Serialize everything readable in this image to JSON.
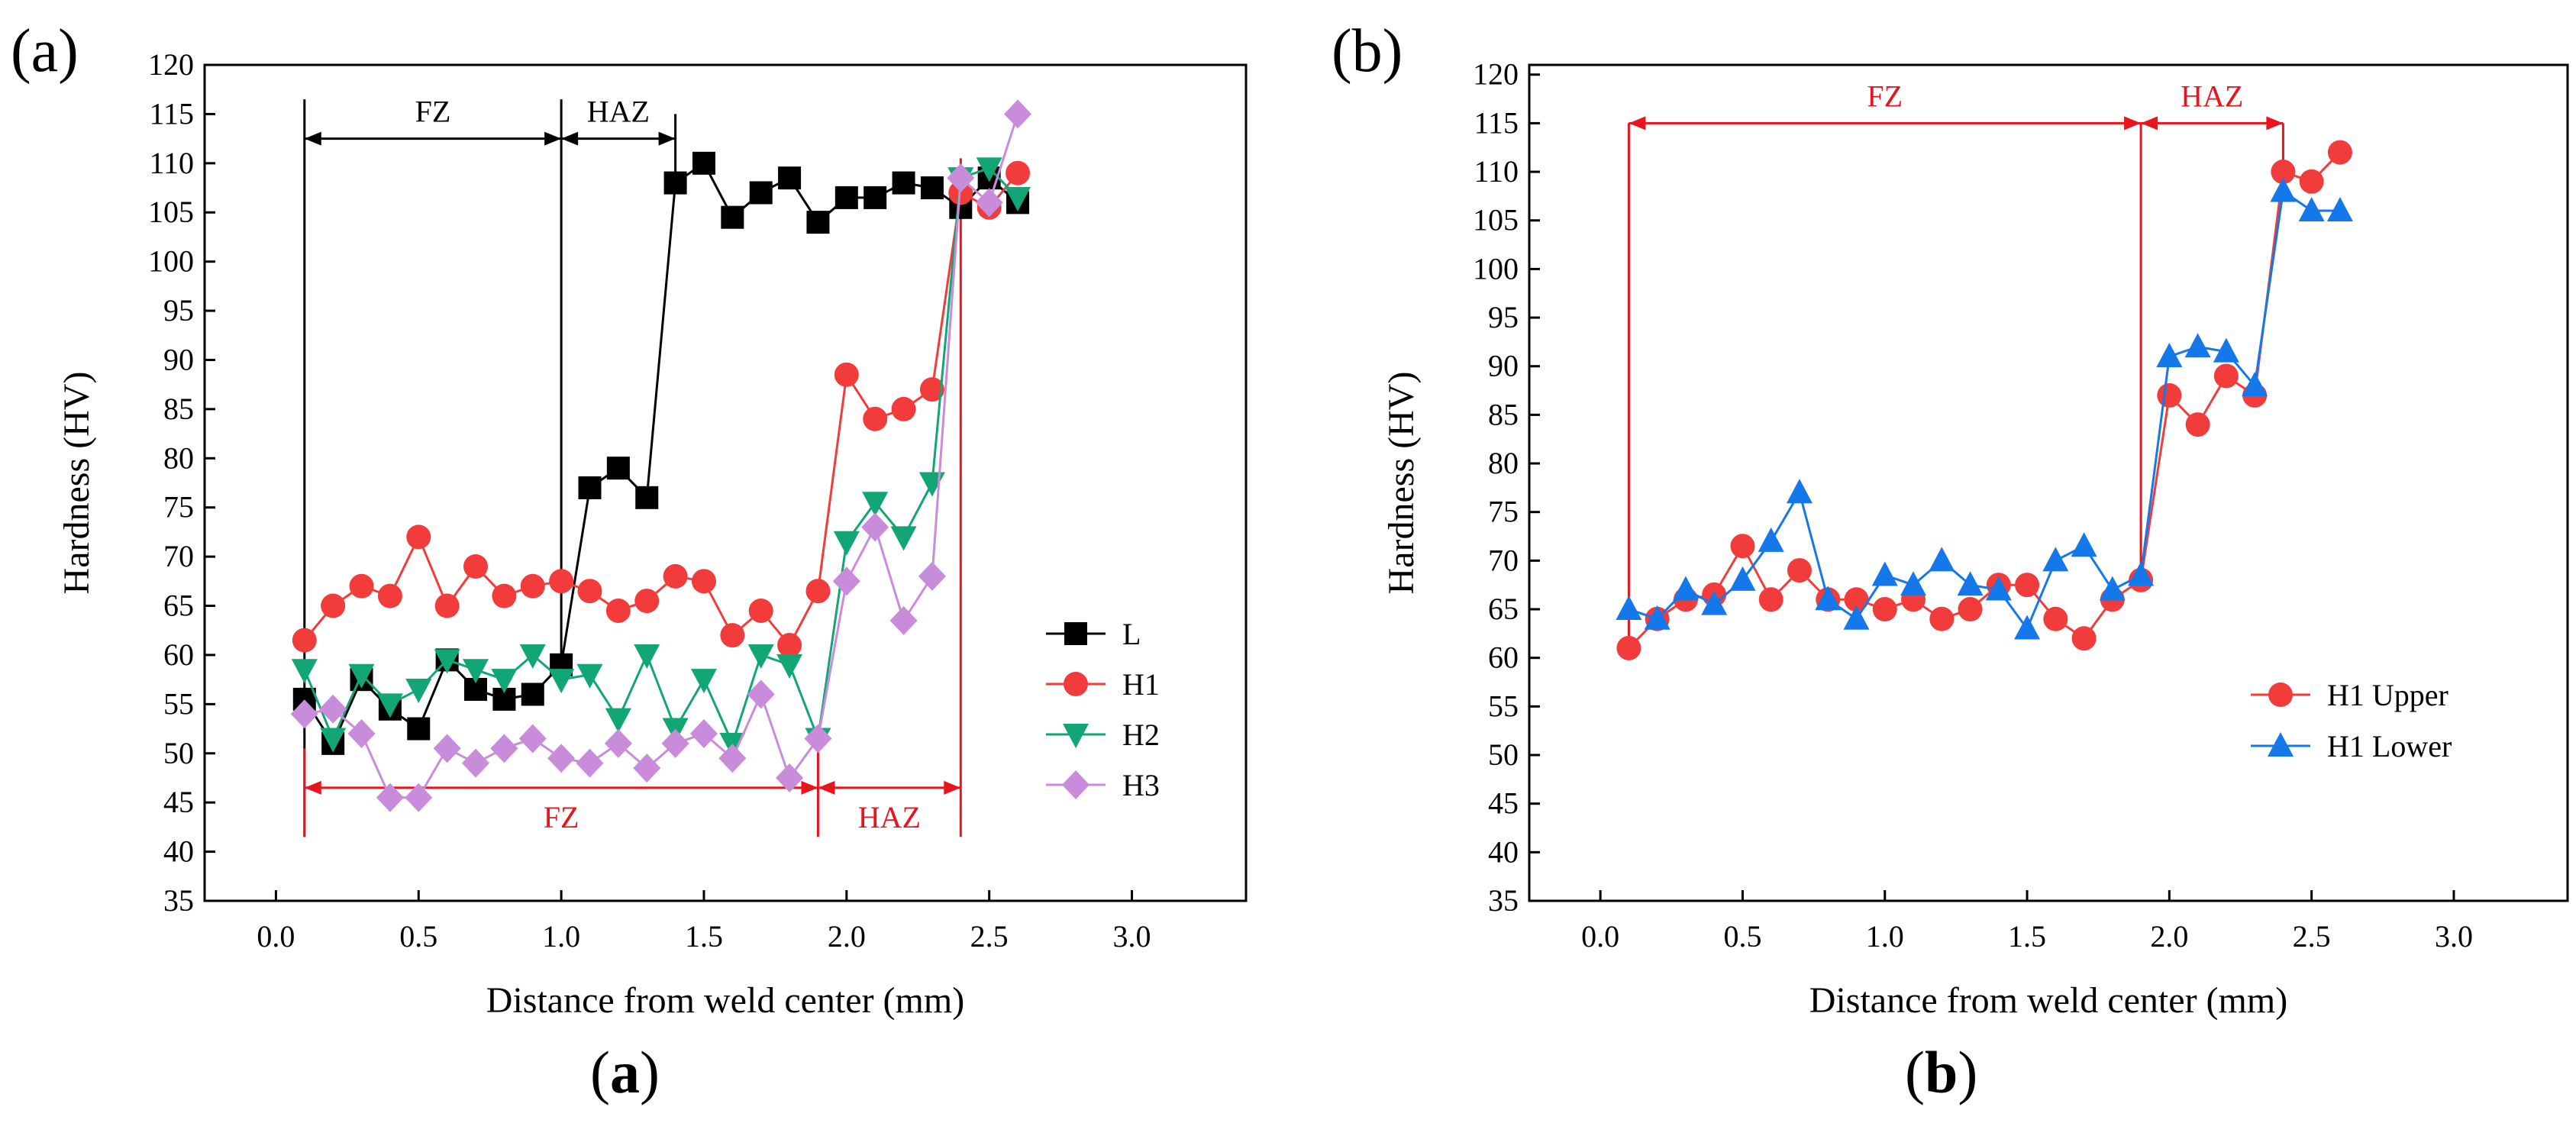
{
  "panel_tags": [
    "(a)",
    "(b)"
  ],
  "captions": [
    "(a)",
    "(b)"
  ],
  "colors": {
    "L": "#000000",
    "H1": "#f23c3c",
    "H2": "#12a676",
    "H3": "#c88cdb",
    "H1 Upper": "#f23c3c",
    "H1 Lower": "#1478ea",
    "annot_red": "#e8141e",
    "annot_black": "#000000"
  },
  "chart_data": [
    {
      "type": "line",
      "panel": "(a)",
      "title": "",
      "xlabel": "Distance from weld center (mm)",
      "ylabel": "Hardness (HV)",
      "xlim": [
        -0.25,
        3.4
      ],
      "ylim": [
        35,
        120
      ],
      "xticks": [
        "0.0",
        "0.5",
        "1.0",
        "1.5",
        "2.0",
        "2.5",
        "3.0"
      ],
      "yticks": [
        "35",
        "40",
        "45",
        "50",
        "55",
        "60",
        "65",
        "70",
        "75",
        "80",
        "85",
        "90",
        "95",
        "100",
        "105",
        "110",
        "115",
        "120"
      ],
      "legend_position": "middle-right",
      "series": [
        {
          "name": "L",
          "marker": "square",
          "x": [
            0.1,
            0.2,
            0.3,
            0.4,
            0.5,
            0.6,
            0.7,
            0.8,
            0.9,
            1.0,
            1.1,
            1.2,
            1.3,
            1.4,
            1.5,
            1.6,
            1.7,
            1.8,
            1.9,
            2.0,
            2.1,
            2.2,
            2.3,
            2.4,
            2.5,
            2.6
          ],
          "values": [
            55.5,
            51,
            57.5,
            54.5,
            52.5,
            59.5,
            56.5,
            55.5,
            56,
            59,
            77,
            79,
            76,
            108,
            110,
            104.5,
            107,
            108.5,
            104,
            106.5,
            106.5,
            108,
            107.5,
            105.5,
            108.5,
            106
          ]
        },
        {
          "name": "H1",
          "marker": "circle",
          "x": [
            0.1,
            0.2,
            0.3,
            0.4,
            0.5,
            0.6,
            0.7,
            0.8,
            0.9,
            1.0,
            1.1,
            1.2,
            1.3,
            1.4,
            1.5,
            1.6,
            1.7,
            1.8,
            1.9,
            2.0,
            2.1,
            2.2,
            2.3,
            2.4,
            2.5,
            2.6
          ],
          "values": [
            61.5,
            65,
            67,
            66,
            72,
            65,
            69,
            66,
            67,
            67.5,
            66.5,
            64.5,
            65.5,
            68,
            67.5,
            62,
            64.5,
            61,
            66.5,
            88.5,
            84,
            85,
            87,
            107,
            105.5,
            109
          ]
        },
        {
          "name": "H2",
          "marker": "triangle-down",
          "x": [
            0.1,
            0.2,
            0.3,
            0.4,
            0.5,
            0.6,
            0.7,
            0.8,
            0.9,
            1.0,
            1.1,
            1.2,
            1.3,
            1.4,
            1.5,
            1.6,
            1.7,
            1.8,
            1.9,
            2.0,
            2.1,
            2.2,
            2.3,
            2.4,
            2.5,
            2.6
          ],
          "values": [
            58.5,
            51.5,
            58,
            55,
            56.5,
            59.5,
            58.5,
            57.5,
            60,
            57.5,
            58,
            53.5,
            60,
            52.5,
            57.5,
            51,
            60,
            59,
            51.5,
            71.5,
            75.5,
            72,
            77.5,
            108.5,
            109.5,
            106.5
          ]
        },
        {
          "name": "H3",
          "marker": "diamond",
          "x": [
            0.1,
            0.2,
            0.3,
            0.4,
            0.5,
            0.6,
            0.7,
            0.8,
            0.9,
            1.0,
            1.1,
            1.2,
            1.3,
            1.4,
            1.5,
            1.6,
            1.7,
            1.8,
            1.9,
            2.0,
            2.1,
            2.2,
            2.3,
            2.4,
            2.5,
            2.6
          ],
          "values": [
            54,
            54.5,
            52,
            45.5,
            45.5,
            50.5,
            49,
            50.5,
            51.5,
            49.5,
            49,
            51,
            48.5,
            51,
            52,
            49.5,
            56,
            47.5,
            51.5,
            67.5,
            73,
            63.5,
            68,
            108.5,
            106,
            115
          ]
        }
      ],
      "annotations": [
        {
          "text": "FZ",
          "color": "black",
          "x1": 0.1,
          "x2": 1.0,
          "y": 112.5
        },
        {
          "text": "HAZ",
          "color": "black",
          "x1": 1.0,
          "x2": 1.4,
          "y": 112.5
        },
        {
          "text": "FZ",
          "color": "red",
          "x1": 0.1,
          "x2": 1.9,
          "y": 46.5
        },
        {
          "text": "HAZ",
          "color": "red",
          "x1": 1.9,
          "x2": 2.4,
          "y": 46.5
        }
      ]
    },
    {
      "type": "line",
      "panel": "(b)",
      "title": "",
      "xlabel": "Distance from weld center (mm)",
      "ylabel": "Hardness (HV)",
      "xlim": [
        -0.25,
        3.4
      ],
      "ylim": [
        35,
        121
      ],
      "xticks": [
        "0.0",
        "0.5",
        "1.0",
        "1.5",
        "2.0",
        "2.5",
        "3.0"
      ],
      "yticks": [
        "35",
        "40",
        "45",
        "50",
        "55",
        "60",
        "65",
        "70",
        "75",
        "80",
        "85",
        "90",
        "95",
        "100",
        "105",
        "110",
        "115",
        "120"
      ],
      "legend_position": "lower-right",
      "series": [
        {
          "name": "H1 Upper",
          "marker": "circle",
          "x": [
            0.1,
            0.2,
            0.3,
            0.4,
            0.5,
            0.6,
            0.7,
            0.8,
            0.9,
            1.0,
            1.1,
            1.2,
            1.3,
            1.4,
            1.5,
            1.6,
            1.7,
            1.8,
            1.9,
            2.0,
            2.1,
            2.2,
            2.3,
            2.4,
            2.5,
            2.6
          ],
          "values": [
            61,
            64,
            66,
            66.5,
            71.5,
            66,
            69,
            66,
            66,
            65,
            66,
            64,
            65,
            67.5,
            67.5,
            64,
            62,
            66,
            68,
            87,
            84,
            89,
            87,
            110,
            109,
            112
          ]
        },
        {
          "name": "H1 Lower",
          "marker": "triangle-up",
          "x": [
            0.1,
            0.2,
            0.3,
            0.4,
            0.5,
            0.6,
            0.7,
            0.8,
            0.9,
            1.0,
            1.1,
            1.2,
            1.3,
            1.4,
            1.5,
            1.6,
            1.7,
            1.8,
            1.9,
            2.0,
            2.1,
            2.2,
            2.3,
            2.4,
            2.5,
            2.6
          ],
          "values": [
            65,
            64,
            67,
            65.5,
            68,
            72,
            77,
            66,
            64,
            68.5,
            67.5,
            70,
            67.5,
            67,
            63,
            70,
            71.5,
            67,
            68.5,
            91,
            92,
            91.5,
            88,
            108,
            106,
            106
          ]
        }
      ],
      "annotations": [
        {
          "text": "FZ",
          "color": "red",
          "x1": 0.1,
          "x2": 1.9,
          "y": 115
        },
        {
          "text": "HAZ",
          "color": "red",
          "x1": 1.9,
          "x2": 2.4,
          "y": 115
        }
      ]
    }
  ]
}
